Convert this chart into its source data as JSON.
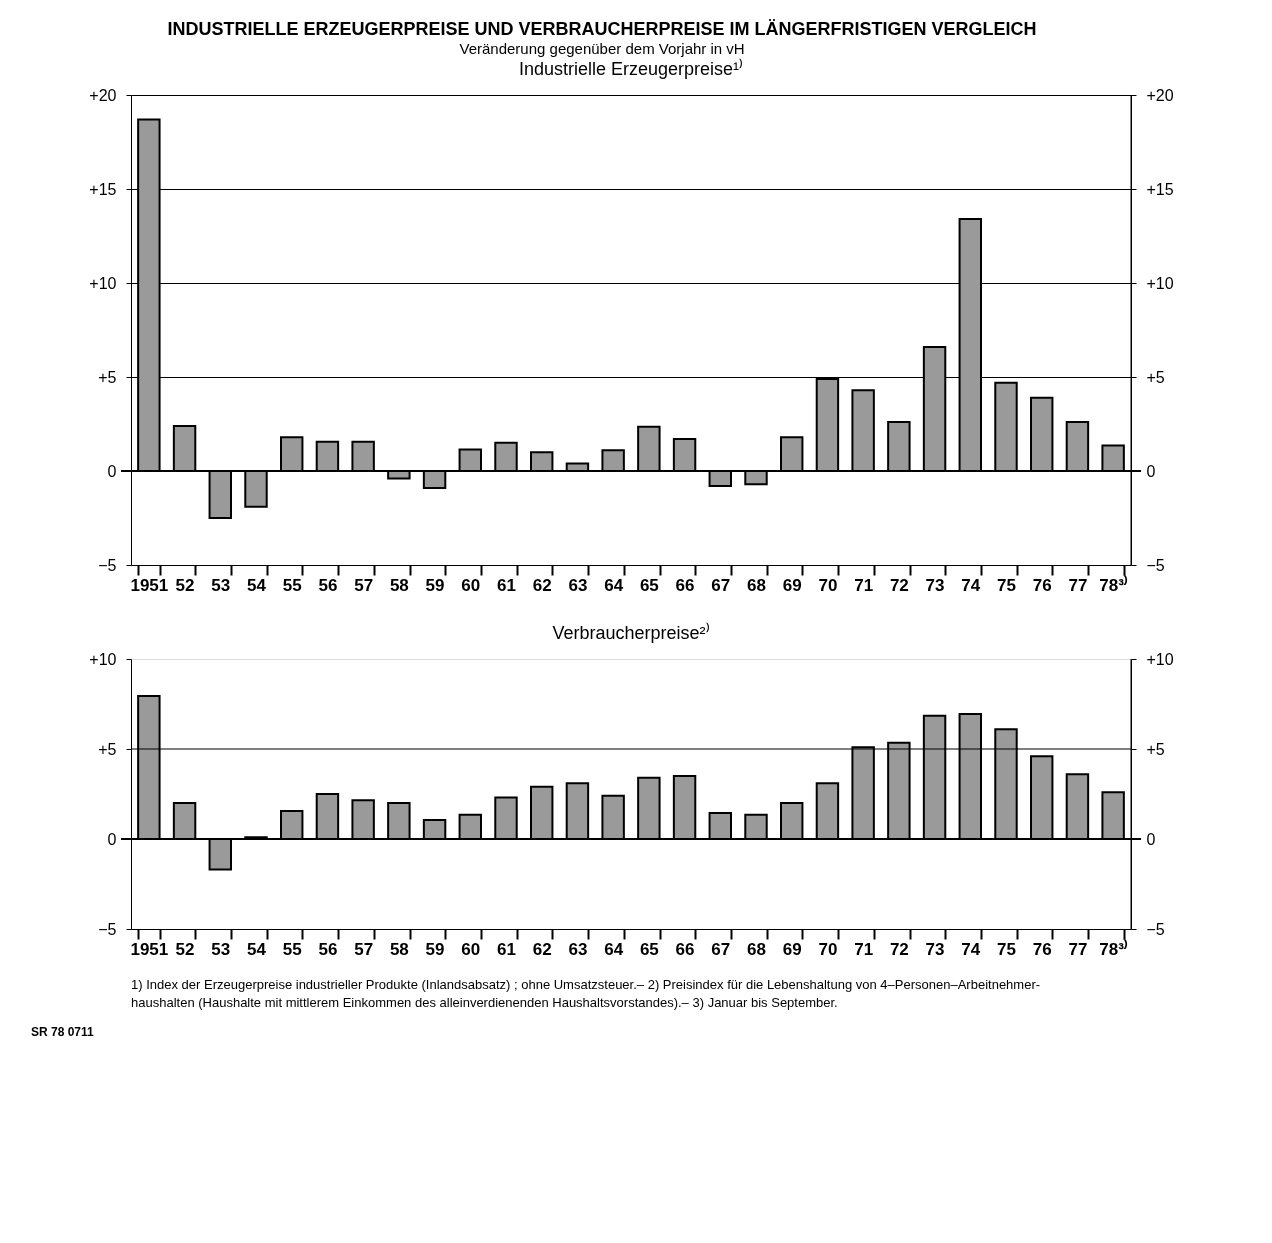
{
  "chart_data": [
    {
      "type": "bar",
      "title": "INDUSTRIELLE ERZEUGERPREISE UND VERBRAUCHERPREISE IM LÄNGERFRISTIGEN VERGLEICH",
      "subtitle": "Veränderung gegenüber dem Vorjahr in vH",
      "categories": [
        "1951",
        "52",
        "53",
        "54",
        "55",
        "56",
        "57",
        "58",
        "59",
        "60",
        "61",
        "62",
        "63",
        "64",
        "65",
        "66",
        "67",
        "68",
        "69",
        "70",
        "71",
        "72",
        "73",
        "74",
        "75",
        "76",
        "77",
        "78³⁾"
      ],
      "series": [
        {
          "name": "Industrielle Erzeugerpreise¹⁾",
          "color": "#9a9a9a",
          "values": [
            18.7,
            2.4,
            -2.5,
            -1.9,
            1.8,
            1.55,
            1.55,
            -0.4,
            -0.9,
            1.15,
            1.5,
            1.0,
            0.4,
            1.1,
            2.35,
            1.7,
            -0.8,
            -0.7,
            1.8,
            4.9,
            4.3,
            2.6,
            6.6,
            13.4,
            4.7,
            3.9,
            2.6,
            1.35
          ]
        }
      ],
      "ylim": [
        -5,
        20
      ],
      "yticks": [
        {
          "value": -5,
          "label": "−5"
        },
        0,
        {
          "value": 5,
          "label": "+5"
        },
        {
          "value": 10,
          "label": "+10"
        },
        {
          "value": 15,
          "label": "+15"
        },
        {
          "value": 20,
          "label": "+20"
        }
      ],
      "y2lim": [
        -5,
        20
      ],
      "y2ticks": [
        {
          "value": -5,
          "label": "−5"
        },
        0,
        {
          "value": 5,
          "label": "+5"
        },
        {
          "value": 10,
          "label": "+10"
        },
        {
          "value": 15,
          "label": "+15"
        },
        {
          "value": 20,
          "label": "+20"
        }
      ],
      "grid": "y"
    },
    {
      "type": "bar",
      "categories": [
        "1951",
        "52",
        "53",
        "54",
        "55",
        "56",
        "57",
        "58",
        "59",
        "60",
        "61",
        "62",
        "63",
        "64",
        "65",
        "66",
        "67",
        "68",
        "69",
        "70",
        "71",
        "72",
        "73",
        "74",
        "75",
        "76",
        "77",
        "78³⁾"
      ],
      "series": [
        {
          "name": "Verbraucherpreise²⁾",
          "color": "#9a9a9a",
          "values": [
            7.95,
            2.0,
            -1.7,
            0.1,
            1.55,
            2.5,
            2.15,
            2.0,
            1.05,
            1.35,
            2.3,
            2.9,
            3.1,
            2.4,
            3.4,
            3.5,
            1.45,
            1.35,
            2.0,
            3.1,
            5.1,
            5.35,
            6.85,
            6.95,
            6.1,
            4.6,
            3.6,
            2.6
          ]
        }
      ],
      "ylim": [
        -5,
        10
      ],
      "yticks": [
        {
          "value": -5,
          "label": "−5"
        },
        0,
        {
          "value": 5,
          "label": "+5"
        },
        {
          "value": 10,
          "label": "+10"
        }
      ],
      "y2lim": [
        -5,
        10
      ],
      "y2ticks": [
        {
          "value": -5,
          "label": "−5"
        },
        0,
        {
          "value": 5,
          "label": "+5"
        },
        {
          "value": 10,
          "label": "+10"
        }
      ],
      "ref_lines": [
        {
          "axis": "y",
          "value": 5
        }
      ],
      "annotations": [
        "1) Index der Erzeugerpreise industrieller Produkte (Inlandsabsatz) ; ohne Umsatzsteuer.– 2) Preisindex für die Lebenshaltung von 4–Personen–Arbeitnehmer-",
        "haushalten (Haushalte mit mittlerem Einkommen des alleinverdienenden Haushaltsvorstandes).– 3) Januar bis September.",
        "SR 78 0711"
      ]
    }
  ]
}
